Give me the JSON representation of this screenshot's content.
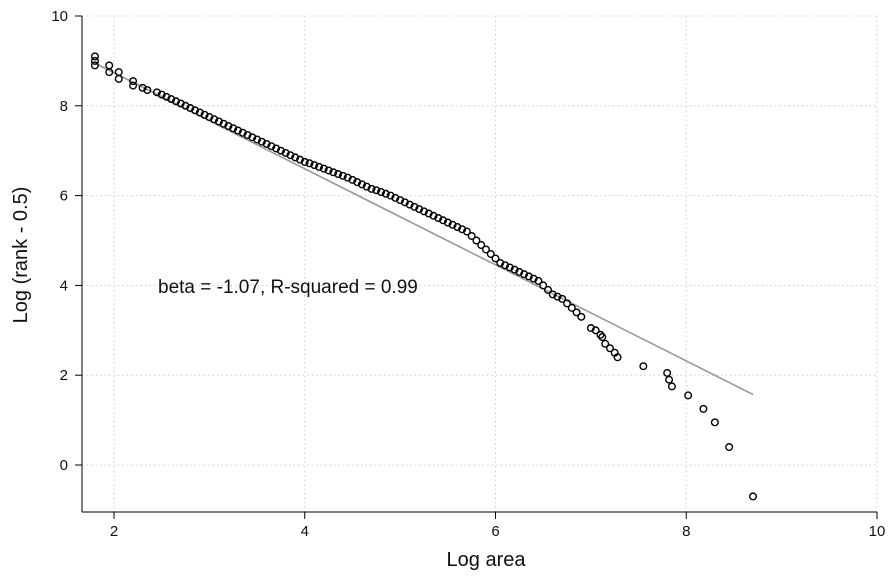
{
  "chart_data": {
    "type": "scatter",
    "xlabel": "Log area",
    "ylabel": "Log (rank - 0.5)",
    "xlim": [
      1.8,
      10
    ],
    "ylim": [
      -1.0,
      10
    ],
    "xticks": [
      2,
      4,
      6,
      8,
      10
    ],
    "yticks": [
      0,
      2,
      4,
      6,
      8,
      10
    ],
    "grid": true,
    "annotation": "beta = -1.07, R-squared = 0.99",
    "colors": {
      "points": "#000000",
      "fit_line": "#999999",
      "grid": "#cccccc",
      "axis": "#000000"
    },
    "fit_line": {
      "slope": -1.07,
      "x": [
        1.8,
        8.7
      ],
      "y": [
        8.95,
        1.57
      ]
    },
    "series": [
      {
        "x": [
          1.8,
          1.8,
          1.8,
          1.95,
          1.95,
          2.05,
          2.05,
          2.2,
          2.2,
          2.3,
          2.35,
          2.45,
          2.5,
          2.55,
          2.6,
          2.65,
          2.7,
          2.75,
          2.8,
          2.85,
          2.9,
          2.95,
          3.0,
          3.05,
          3.1,
          3.15,
          3.2,
          3.25,
          3.3,
          3.35,
          3.4,
          3.45,
          3.5,
          3.55,
          3.6,
          3.65,
          3.7,
          3.75,
          3.8,
          3.85,
          3.9,
          3.95,
          4.0,
          4.05,
          4.1,
          4.15,
          4.2,
          4.25,
          4.3,
          4.35,
          4.4,
          4.45,
          4.5,
          4.55,
          4.6,
          4.65,
          4.7,
          4.75,
          4.8,
          4.85,
          4.9,
          4.95,
          5.0,
          5.05,
          5.1,
          5.15,
          5.2,
          5.25,
          5.3,
          5.35,
          5.4,
          5.45,
          5.5,
          5.55,
          5.6,
          5.65,
          5.7,
          5.75,
          5.8,
          5.85,
          5.9,
          5.95,
          6.0,
          6.05,
          6.1,
          6.15,
          6.2,
          6.25,
          6.3,
          6.35,
          6.4,
          6.45,
          6.5,
          6.55,
          6.6,
          6.65,
          6.7,
          6.75,
          6.8,
          6.85,
          6.9,
          7.0,
          7.05,
          7.1,
          7.12,
          7.15,
          7.2,
          7.25,
          7.28,
          7.55,
          7.8,
          7.82,
          7.85,
          8.02,
          8.18,
          8.3,
          8.45,
          8.7
        ],
        "y": [
          9.1,
          9.0,
          8.9,
          8.9,
          8.75,
          8.75,
          8.6,
          8.55,
          8.45,
          8.4,
          8.35,
          8.3,
          8.25,
          8.2,
          8.15,
          8.1,
          8.05,
          8.0,
          7.95,
          7.9,
          7.85,
          7.8,
          7.75,
          7.7,
          7.65,
          7.6,
          7.55,
          7.5,
          7.45,
          7.4,
          7.35,
          7.3,
          7.25,
          7.2,
          7.15,
          7.1,
          7.05,
          7.0,
          6.95,
          6.9,
          6.85,
          6.8,
          6.75,
          6.72,
          6.68,
          6.64,
          6.6,
          6.56,
          6.52,
          6.48,
          6.44,
          6.4,
          6.35,
          6.3,
          6.25,
          6.2,
          6.15,
          6.12,
          6.08,
          6.04,
          6.0,
          5.95,
          5.9,
          5.85,
          5.8,
          5.75,
          5.7,
          5.65,
          5.6,
          5.55,
          5.5,
          5.45,
          5.4,
          5.35,
          5.3,
          5.25,
          5.2,
          5.1,
          5.0,
          4.9,
          4.8,
          4.7,
          4.6,
          4.5,
          4.45,
          4.4,
          4.35,
          4.3,
          4.25,
          4.2,
          4.15,
          4.1,
          4.0,
          3.9,
          3.8,
          3.75,
          3.7,
          3.6,
          3.5,
          3.4,
          3.3,
          3.05,
          3.0,
          2.9,
          2.85,
          2.7,
          2.6,
          2.5,
          2.4,
          2.2,
          2.05,
          1.9,
          1.75,
          1.55,
          1.25,
          0.95,
          0.4,
          -0.7
        ]
      }
    ]
  }
}
